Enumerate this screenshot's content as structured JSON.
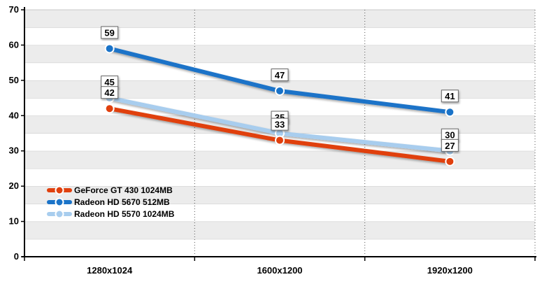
{
  "chart_data": {
    "type": "line",
    "title": "",
    "xlabel": "",
    "ylabel": "",
    "categories": [
      "1280x1024",
      "1600x1200",
      "1920x1200"
    ],
    "ylim": [
      0,
      70
    ],
    "yticks": [
      "0",
      "10",
      "20",
      "30",
      "40",
      "50",
      "60",
      "70"
    ],
    "grid": "horizontal bands and vertical dotted separators",
    "legend_position": "bottom-left",
    "series": [
      {
        "name": "GeForce GT 430 1024MB",
        "values": [
          42,
          33,
          27
        ],
        "color": "#e0400e"
      },
      {
        "name": "Radeon HD 5670 512MB",
        "values": [
          59,
          47,
          41
        ],
        "color": "#1a73c8"
      },
      {
        "name": "Radeon HD 5570 1024MB",
        "values": [
          45,
          35,
          30
        ],
        "color": "#a8cdee"
      }
    ]
  }
}
